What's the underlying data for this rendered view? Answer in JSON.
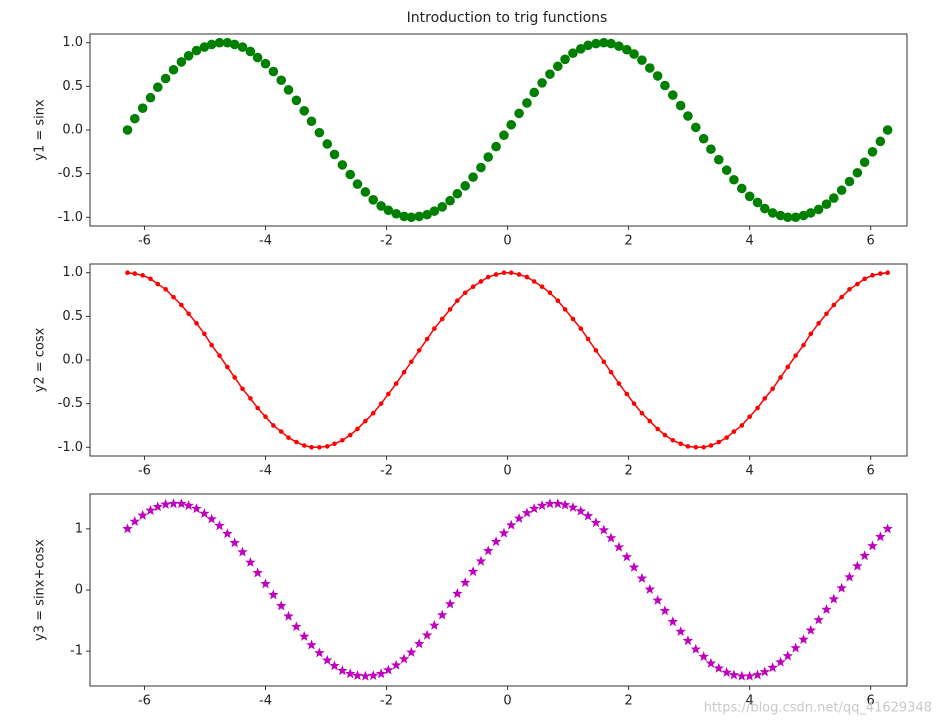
{
  "chart_data": [
    {
      "type": "scatter",
      "title": "Introduction to trig functions",
      "ylabel": "y1 = sinx",
      "x": [
        -6.28,
        -6.16,
        -6.03,
        -5.9,
        -5.78,
        -5.65,
        -5.52,
        -5.39,
        -5.27,
        -5.14,
        -5.01,
        -4.89,
        -4.76,
        -4.63,
        -4.51,
        -4.38,
        -4.25,
        -4.13,
        -4.0,
        -3.87,
        -3.74,
        -3.62,
        -3.49,
        -3.36,
        -3.24,
        -3.11,
        -2.98,
        -2.86,
        -2.73,
        -2.6,
        -2.48,
        -2.35,
        -2.22,
        -2.09,
        -1.97,
        -1.84,
        -1.71,
        -1.59,
        -1.46,
        -1.33,
        -1.21,
        -1.08,
        -0.95,
        -0.83,
        -0.7,
        -0.57,
        -0.44,
        -0.32,
        -0.19,
        -0.06,
        0.06,
        0.19,
        0.32,
        0.44,
        0.57,
        0.7,
        0.83,
        0.95,
        1.08,
        1.21,
        1.33,
        1.46,
        1.59,
        1.71,
        1.84,
        1.97,
        2.09,
        2.22,
        2.35,
        2.48,
        2.6,
        2.73,
        2.86,
        2.98,
        3.11,
        3.24,
        3.36,
        3.49,
        3.62,
        3.74,
        3.87,
        4.0,
        4.13,
        4.25,
        4.38,
        4.51,
        4.63,
        4.76,
        4.89,
        5.01,
        5.14,
        5.27,
        5.39,
        5.52,
        5.65,
        5.78,
        5.9,
        6.03,
        6.16,
        6.28
      ],
      "series": [
        {
          "color": "#008000",
          "marker": "circle",
          "line": false,
          "values": [
            0,
            0.13,
            0.25,
            0.37,
            0.49,
            0.59,
            0.69,
            0.78,
            0.85,
            0.91,
            0.95,
            0.98,
            1.0,
            1.0,
            0.98,
            0.95,
            0.9,
            0.83,
            0.76,
            0.67,
            0.57,
            0.46,
            0.34,
            0.22,
            0.1,
            -0.03,
            -0.16,
            -0.28,
            -0.4,
            -0.51,
            -0.62,
            -0.71,
            -0.8,
            -0.87,
            -0.92,
            -0.96,
            -0.99,
            -1.0,
            -0.99,
            -0.97,
            -0.93,
            -0.88,
            -0.81,
            -0.73,
            -0.64,
            -0.54,
            -0.43,
            -0.31,
            -0.19,
            -0.06,
            0.06,
            0.19,
            0.31,
            0.43,
            0.54,
            0.64,
            0.73,
            0.81,
            0.88,
            0.93,
            0.97,
            0.99,
            1.0,
            0.99,
            0.96,
            0.92,
            0.87,
            0.8,
            0.71,
            0.62,
            0.51,
            0.4,
            0.28,
            0.16,
            0.03,
            -0.1,
            -0.22,
            -0.34,
            -0.46,
            -0.57,
            -0.67,
            -0.76,
            -0.83,
            -0.9,
            -0.95,
            -0.98,
            -1.0,
            -1.0,
            -0.98,
            -0.95,
            -0.91,
            -0.85,
            -0.78,
            -0.69,
            -0.59,
            -0.49,
            -0.37,
            -0.25,
            -0.13,
            0
          ]
        }
      ],
      "xlim": [
        -6.9,
        6.6
      ],
      "ylim": [
        -1.1,
        1.1
      ],
      "xticks": [
        -6,
        -4,
        -2,
        0,
        2,
        4,
        6
      ],
      "yticks": [
        {
          "value": -1,
          "label": "-1.0"
        },
        {
          "value": -0.5,
          "label": "-0.5"
        },
        {
          "value": 0,
          "label": "0.0"
        },
        {
          "value": 0.5,
          "label": "0.5"
        },
        {
          "value": 1,
          "label": "1.0"
        }
      ]
    },
    {
      "type": "line",
      "ylabel": "y2 = cosx",
      "x": [
        -6.28,
        -6.16,
        -6.03,
        -5.9,
        -5.78,
        -5.65,
        -5.52,
        -5.39,
        -5.27,
        -5.14,
        -5.01,
        -4.89,
        -4.76,
        -4.63,
        -4.51,
        -4.38,
        -4.25,
        -4.13,
        -4.0,
        -3.87,
        -3.74,
        -3.62,
        -3.49,
        -3.36,
        -3.24,
        -3.11,
        -2.98,
        -2.86,
        -2.73,
        -2.6,
        -2.48,
        -2.35,
        -2.22,
        -2.09,
        -1.97,
        -1.84,
        -1.71,
        -1.59,
        -1.46,
        -1.33,
        -1.21,
        -1.08,
        -0.95,
        -0.83,
        -0.7,
        -0.57,
        -0.44,
        -0.32,
        -0.19,
        -0.06,
        0.06,
        0.19,
        0.32,
        0.44,
        0.57,
        0.7,
        0.83,
        0.95,
        1.08,
        1.21,
        1.33,
        1.46,
        1.59,
        1.71,
        1.84,
        1.97,
        2.09,
        2.22,
        2.35,
        2.48,
        2.6,
        2.73,
        2.86,
        2.98,
        3.11,
        3.24,
        3.36,
        3.49,
        3.62,
        3.74,
        3.87,
        4.0,
        4.13,
        4.25,
        4.38,
        4.51,
        4.63,
        4.76,
        4.89,
        5.01,
        5.14,
        5.27,
        5.39,
        5.52,
        5.65,
        5.78,
        5.9,
        6.03,
        6.16,
        6.28
      ],
      "series": [
        {
          "color": "#ff0000",
          "marker": "dot",
          "line": true,
          "values": [
            1,
            0.99,
            0.97,
            0.93,
            0.87,
            0.81,
            0.72,
            0.63,
            0.53,
            0.42,
            0.3,
            0.17,
            0.05,
            -0.08,
            -0.2,
            -0.33,
            -0.44,
            -0.55,
            -0.65,
            -0.75,
            -0.82,
            -0.89,
            -0.94,
            -0.98,
            -1.0,
            -1.0,
            -0.99,
            -0.96,
            -0.92,
            -0.86,
            -0.79,
            -0.7,
            -0.61,
            -0.5,
            -0.39,
            -0.27,
            -0.14,
            -0.02,
            0.11,
            0.24,
            0.36,
            0.47,
            0.58,
            0.68,
            0.77,
            0.84,
            0.9,
            0.95,
            0.98,
            1.0,
            1.0,
            0.98,
            0.95,
            0.9,
            0.84,
            0.77,
            0.68,
            0.58,
            0.47,
            0.36,
            0.24,
            0.11,
            -0.02,
            -0.14,
            -0.27,
            -0.39,
            -0.5,
            -0.61,
            -0.7,
            -0.79,
            -0.86,
            -0.92,
            -0.96,
            -0.99,
            -1.0,
            -1.0,
            -0.98,
            -0.94,
            -0.89,
            -0.82,
            -0.75,
            -0.65,
            -0.55,
            -0.44,
            -0.33,
            -0.2,
            -0.08,
            0.05,
            0.17,
            0.3,
            0.42,
            0.53,
            0.63,
            0.72,
            0.81,
            0.87,
            0.93,
            0.97,
            0.99,
            1
          ]
        }
      ],
      "xlim": [
        -6.9,
        6.6
      ],
      "ylim": [
        -1.1,
        1.1
      ],
      "xticks": [
        -6,
        -4,
        -2,
        0,
        2,
        4,
        6
      ],
      "yticks": [
        {
          "value": -1,
          "label": "-1.0"
        },
        {
          "value": -0.5,
          "label": "-0.5"
        },
        {
          "value": 0,
          "label": "0.0"
        },
        {
          "value": 0.5,
          "label": "0.5"
        },
        {
          "value": 1,
          "label": "1.0"
        }
      ]
    },
    {
      "type": "scatter",
      "ylabel": "y3 = sinx+cosx",
      "watermark": "https://blog.csdn.net/qq_41629348",
      "x": [
        -6.28,
        -6.16,
        -6.03,
        -5.9,
        -5.78,
        -5.65,
        -5.52,
        -5.39,
        -5.27,
        -5.14,
        -5.01,
        -4.89,
        -4.76,
        -4.63,
        -4.51,
        -4.38,
        -4.25,
        -4.13,
        -4.0,
        -3.87,
        -3.74,
        -3.62,
        -3.49,
        -3.36,
        -3.24,
        -3.11,
        -2.98,
        -2.86,
        -2.73,
        -2.6,
        -2.48,
        -2.35,
        -2.22,
        -2.09,
        -1.97,
        -1.84,
        -1.71,
        -1.59,
        -1.46,
        -1.33,
        -1.21,
        -1.08,
        -0.95,
        -0.83,
        -0.7,
        -0.57,
        -0.44,
        -0.32,
        -0.19,
        -0.06,
        0.06,
        0.19,
        0.32,
        0.44,
        0.57,
        0.7,
        0.83,
        0.95,
        1.08,
        1.21,
        1.33,
        1.46,
        1.59,
        1.71,
        1.84,
        1.97,
        2.09,
        2.22,
        2.35,
        2.48,
        2.6,
        2.73,
        2.86,
        2.98,
        3.11,
        3.24,
        3.36,
        3.49,
        3.62,
        3.74,
        3.87,
        4.0,
        4.13,
        4.25,
        4.38,
        4.51,
        4.63,
        4.76,
        4.89,
        5.01,
        5.14,
        5.27,
        5.39,
        5.52,
        5.65,
        5.78,
        5.9,
        6.03,
        6.16,
        6.28
      ],
      "series": [
        {
          "color": "#bf00bf",
          "marker": "star",
          "line": false,
          "values": [
            1,
            1.12,
            1.22,
            1.3,
            1.36,
            1.4,
            1.41,
            1.41,
            1.38,
            1.33,
            1.25,
            1.16,
            1.05,
            0.92,
            0.77,
            0.62,
            0.45,
            0.28,
            0.1,
            -0.08,
            -0.26,
            -0.43,
            -0.6,
            -0.76,
            -0.9,
            -1.03,
            -1.15,
            -1.24,
            -1.32,
            -1.37,
            -1.4,
            -1.41,
            -1.4,
            -1.37,
            -1.31,
            -1.23,
            -1.13,
            -1.02,
            -0.88,
            -0.74,
            -0.58,
            -0.41,
            -0.23,
            -0.06,
            0.12,
            0.3,
            0.47,
            0.64,
            0.79,
            0.93,
            1.06,
            1.17,
            1.26,
            1.33,
            1.38,
            1.41,
            1.41,
            1.39,
            1.35,
            1.29,
            1.21,
            1.1,
            0.98,
            0.85,
            0.7,
            0.54,
            0.37,
            0.19,
            0.01,
            -0.17,
            -0.34,
            -0.52,
            -0.68,
            -0.83,
            -0.97,
            -1.09,
            -1.2,
            -1.28,
            -1.35,
            -1.39,
            -1.41,
            -1.41,
            -1.39,
            -1.34,
            -1.27,
            -1.18,
            -1.08,
            -0.95,
            -0.81,
            -0.66,
            -0.49,
            -0.32,
            -0.15,
            0.03,
            0.21,
            0.39,
            0.56,
            0.72,
            0.87,
            1
          ]
        }
      ],
      "xlim": [
        -6.9,
        6.6
      ],
      "ylim": [
        -1.57,
        1.57
      ],
      "xticks": [
        -6,
        -4,
        -2,
        0,
        2,
        4,
        6
      ],
      "yticks": [
        -1,
        0,
        1
      ]
    }
  ]
}
